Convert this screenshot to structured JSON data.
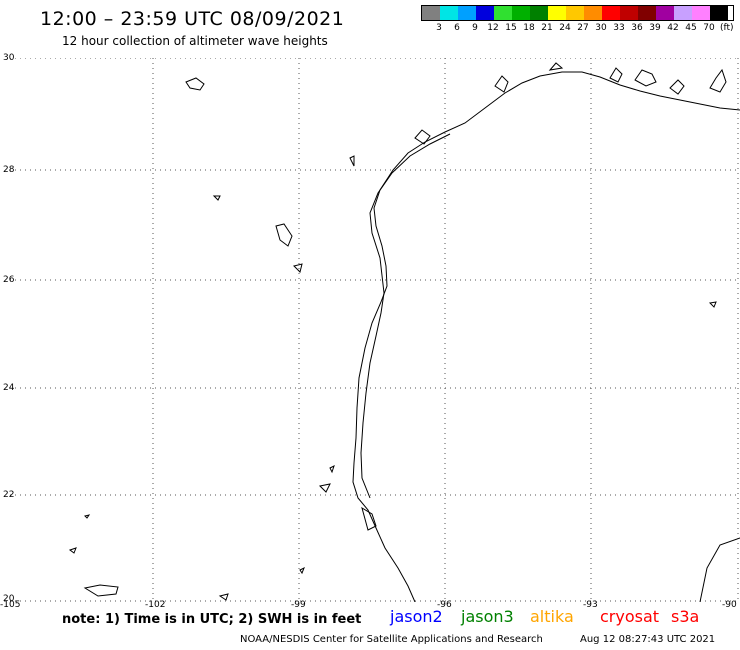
{
  "title": "12:00 – 23:59 UTC 08/09/2021",
  "subtitle": "12 hour collection of altimeter wave heights",
  "legend": {
    "colors": [
      "#808080",
      "#00e5e5",
      "#00a0ff",
      "#0000dd",
      "#30e030",
      "#00b000",
      "#008000",
      "#ffff00",
      "#ffc800",
      "#ff8c00",
      "#ff0000",
      "#c00000",
      "#800000",
      "#a000a0",
      "#c8a0ff",
      "#ff80ff",
      "#000000"
    ],
    "ticks": [
      "3",
      "6",
      "9",
      "12",
      "15",
      "18",
      "21",
      "24",
      "27",
      "30",
      "33",
      "36",
      "39",
      "42",
      "45",
      "70"
    ],
    "unit": "(ft)"
  },
  "lat_labels": [
    "30",
    "28",
    "26",
    "24",
    "22",
    "20"
  ],
  "lon_labels": [
    "-105",
    "-102",
    "-99",
    "-96",
    "-93",
    "-90"
  ],
  "note": "note: 1) Time is in UTC; 2) SWH is in feet",
  "satellites": [
    {
      "name": "jason2",
      "color": "#0000ff"
    },
    {
      "name": "jason3",
      "color": "#008000"
    },
    {
      "name": "altika",
      "color": "#ffa500"
    },
    {
      "name": "cryosat",
      "color": "#ff0000"
    },
    {
      "name": "s3a",
      "color": "#ff0000"
    }
  ],
  "credit": "NOAA/NESDIS Center for Satellite Applications and Research",
  "timestamp": "Aug 12 08:27:43 UTC 2021"
}
